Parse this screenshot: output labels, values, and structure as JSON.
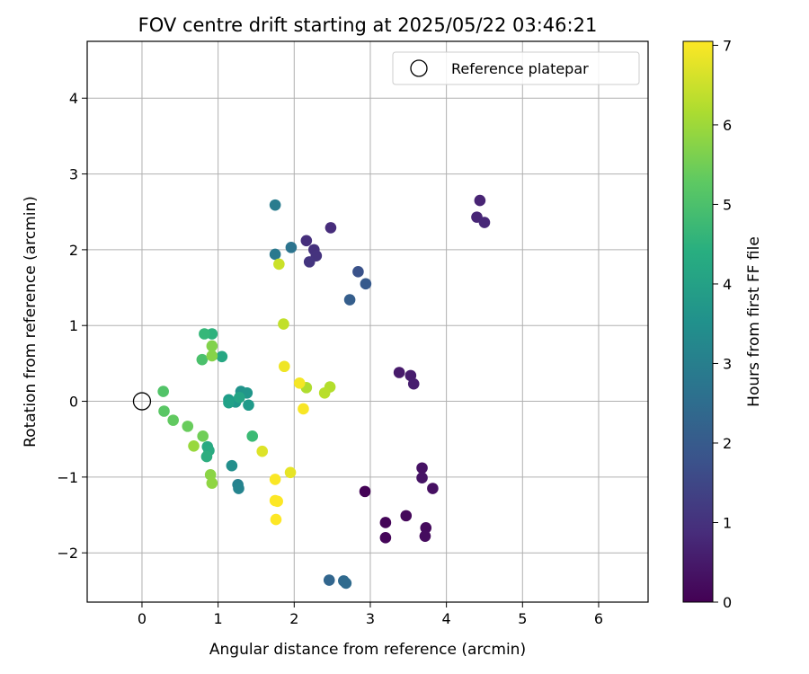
{
  "chart_data": {
    "type": "scatter",
    "title": "FOV centre drift starting at 2025/05/22 03:46:21",
    "xlabel": "Angular distance from reference (arcmin)",
    "ylabel": "Rotation from reference (arcmin)",
    "xlim": [
      -0.72,
      6.65
    ],
    "ylim": [
      -2.65,
      4.75
    ],
    "xticks": [
      0,
      1,
      2,
      3,
      4,
      5,
      6
    ],
    "yticks": [
      -2,
      -1,
      0,
      1,
      2,
      3,
      4
    ],
    "grid": true,
    "legend": {
      "position": "top-right",
      "entries": [
        "Reference platepar"
      ]
    },
    "reference_point": {
      "x": 0,
      "y": 0,
      "name": "Reference platepar"
    },
    "colorbar": {
      "label": "Hours from first FF file",
      "min": 0,
      "max": 7.05,
      "ticks": [
        0,
        1,
        2,
        3,
        4,
        5,
        6,
        7
      ],
      "colormap": "viridis"
    },
    "points": [
      {
        "x": 2.93,
        "y": -1.19,
        "t": 0.05
      },
      {
        "x": 3.2,
        "y": -1.6,
        "t": 0.08
      },
      {
        "x": 3.2,
        "y": -1.8,
        "t": 0.1
      },
      {
        "x": 3.47,
        "y": -1.51,
        "t": 0.15
      },
      {
        "x": 3.73,
        "y": -1.67,
        "t": 0.2
      },
      {
        "x": 3.72,
        "y": -1.78,
        "t": 0.22
      },
      {
        "x": 3.82,
        "y": -1.15,
        "t": 0.3
      },
      {
        "x": 3.68,
        "y": -0.88,
        "t": 0.35
      },
      {
        "x": 3.68,
        "y": -1.01,
        "t": 0.38
      },
      {
        "x": 3.38,
        "y": 0.38,
        "t": 0.5
      },
      {
        "x": 3.53,
        "y": 0.34,
        "t": 0.55
      },
      {
        "x": 3.57,
        "y": 0.23,
        "t": 0.58
      },
      {
        "x": 4.44,
        "y": 2.65,
        "t": 0.7
      },
      {
        "x": 4.4,
        "y": 2.43,
        "t": 0.75
      },
      {
        "x": 4.5,
        "y": 2.36,
        "t": 0.78
      },
      {
        "x": 2.48,
        "y": 2.29,
        "t": 0.9
      },
      {
        "x": 2.16,
        "y": 2.12,
        "t": 0.95
      },
      {
        "x": 2.26,
        "y": 2.0,
        "t": 1.0
      },
      {
        "x": 2.29,
        "y": 1.92,
        "t": 1.05
      },
      {
        "x": 2.2,
        "y": 1.84,
        "t": 1.1
      },
      {
        "x": 2.84,
        "y": 1.71,
        "t": 1.8
      },
      {
        "x": 2.94,
        "y": 1.55,
        "t": 2.0
      },
      {
        "x": 2.73,
        "y": 1.34,
        "t": 2.1
      },
      {
        "x": 2.46,
        "y": -2.36,
        "t": 2.3
      },
      {
        "x": 2.65,
        "y": -2.37,
        "t": 2.4
      },
      {
        "x": 2.68,
        "y": -2.4,
        "t": 2.45
      },
      {
        "x": 1.96,
        "y": 2.03,
        "t": 2.7
      },
      {
        "x": 1.75,
        "y": 1.94,
        "t": 2.85
      },
      {
        "x": 1.75,
        "y": 2.59,
        "t": 2.95
      },
      {
        "x": 1.26,
        "y": -1.1,
        "t": 3.1
      },
      {
        "x": 1.27,
        "y": -1.15,
        "t": 3.2
      },
      {
        "x": 1.18,
        "y": -0.85,
        "t": 3.5
      },
      {
        "x": 1.3,
        "y": 0.13,
        "t": 3.6
      },
      {
        "x": 1.38,
        "y": 0.11,
        "t": 3.7
      },
      {
        "x": 1.23,
        "y": -0.01,
        "t": 3.75
      },
      {
        "x": 1.4,
        "y": -0.05,
        "t": 3.8
      },
      {
        "x": 1.14,
        "y": 0.02,
        "t": 3.9
      },
      {
        "x": 1.14,
        "y": -0.02,
        "t": 4.0
      },
      {
        "x": 1.28,
        "y": 0.05,
        "t": 4.1
      },
      {
        "x": 1.05,
        "y": 0.59,
        "t": 4.2
      },
      {
        "x": 0.86,
        "y": -0.6,
        "t": 4.25
      },
      {
        "x": 0.88,
        "y": -0.65,
        "t": 4.3
      },
      {
        "x": 0.85,
        "y": -0.73,
        "t": 4.4
      },
      {
        "x": 0.92,
        "y": 0.89,
        "t": 4.5
      },
      {
        "x": 0.82,
        "y": 0.89,
        "t": 4.7
      },
      {
        "x": 1.45,
        "y": -0.46,
        "t": 4.8
      },
      {
        "x": 0.79,
        "y": 0.55,
        "t": 5.0
      },
      {
        "x": 0.28,
        "y": 0.13,
        "t": 5.1
      },
      {
        "x": 0.29,
        "y": -0.13,
        "t": 5.2
      },
      {
        "x": 0.41,
        "y": -0.25,
        "t": 5.3
      },
      {
        "x": 0.6,
        "y": -0.33,
        "t": 5.4
      },
      {
        "x": 0.8,
        "y": -0.46,
        "t": 5.5
      },
      {
        "x": 0.92,
        "y": 0.73,
        "t": 5.7
      },
      {
        "x": 0.92,
        "y": 0.6,
        "t": 5.75
      },
      {
        "x": 0.9,
        "y": -0.97,
        "t": 5.8
      },
      {
        "x": 0.92,
        "y": -1.08,
        "t": 5.85
      },
      {
        "x": 0.68,
        "y": -0.59,
        "t": 5.95
      },
      {
        "x": 2.16,
        "y": 0.18,
        "t": 6.2
      },
      {
        "x": 2.47,
        "y": 0.19,
        "t": 6.25
      },
      {
        "x": 2.4,
        "y": 0.11,
        "t": 6.3
      },
      {
        "x": 1.86,
        "y": 1.02,
        "t": 6.4
      },
      {
        "x": 1.8,
        "y": 1.81,
        "t": 6.5
      },
      {
        "x": 1.58,
        "y": -0.66,
        "t": 6.7
      },
      {
        "x": 1.95,
        "y": -0.94,
        "t": 6.8
      },
      {
        "x": 1.87,
        "y": 0.46,
        "t": 6.9
      },
      {
        "x": 2.07,
        "y": 0.24,
        "t": 6.95
      },
      {
        "x": 2.12,
        "y": -0.1,
        "t": 7.0
      },
      {
        "x": 1.75,
        "y": -1.03,
        "t": 7.02
      },
      {
        "x": 1.75,
        "y": -1.31,
        "t": 7.03
      },
      {
        "x": 1.78,
        "y": -1.32,
        "t": 7.04
      },
      {
        "x": 1.76,
        "y": -1.56,
        "t": 7.05
      }
    ]
  }
}
